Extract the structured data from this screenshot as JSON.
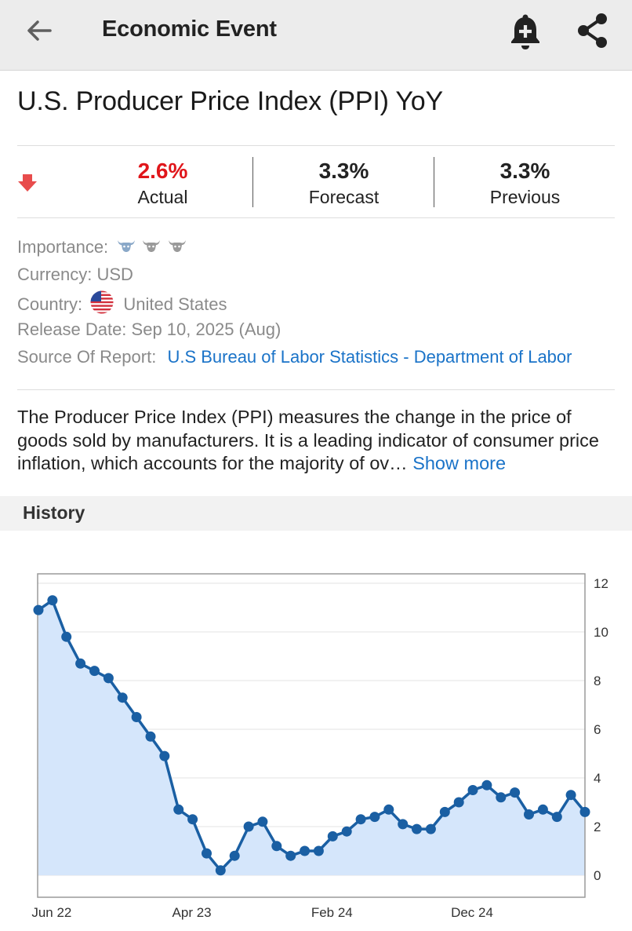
{
  "appbar": {
    "title": "Economic Event",
    "back_icon": "arrow-left-icon",
    "bell_icon": "bell-plus-icon",
    "share_icon": "share-icon"
  },
  "event": {
    "title": "U.S. Producer Price Index (PPI) YoY"
  },
  "stats": {
    "trend_icon": "arrow-down-icon",
    "actual": {
      "value": "2.6%",
      "label": "Actual",
      "color": "#e0161b"
    },
    "forecast": {
      "value": "3.3%",
      "label": "Forecast"
    },
    "previous": {
      "value": "3.3%",
      "label": "Previous"
    }
  },
  "meta": {
    "importance_label": "Importance:",
    "importance_level": 1,
    "importance_max": 3,
    "currency_label": "Currency:",
    "currency_value": "USD",
    "country_label": "Country:",
    "country_value": "United States",
    "release_label": "Release Date:",
    "release_value": "Sep 10, 2025 (Aug)",
    "source_label": "Source Of Report:",
    "source_value": "U.S Bureau of Labor Statistics - Department of Labor"
  },
  "description": {
    "text": "The Producer Price Index (PPI) measures the change in the price of goods sold by manufacturers. It is a leading indicator of consumer price inflation, which accounts for the majority of ov…",
    "show_more": "Show more"
  },
  "history": {
    "heading": "History"
  },
  "colors": {
    "line": "#1a5fa3",
    "fill": "#d5e6fb",
    "link": "#1a73c8",
    "bull_active": "#8aa8c8",
    "bull_inactive": "#9a9a9a"
  },
  "chart_data": {
    "type": "area",
    "ylim": [
      0,
      12
    ],
    "yticks": [
      "0",
      "2",
      "4",
      "6",
      "8",
      "10",
      "12"
    ],
    "xticks": [
      {
        "label": "Jun 22",
        "index": 1
      },
      {
        "label": "Apr 23",
        "index": 11
      },
      {
        "label": "Feb 24",
        "index": 21
      },
      {
        "label": "Dec 24",
        "index": 31
      }
    ],
    "grid": true,
    "values": [
      10.9,
      11.3,
      9.8,
      8.7,
      8.4,
      8.1,
      7.3,
      6.5,
      5.7,
      4.9,
      2.7,
      2.3,
      0.9,
      0.2,
      0.8,
      2.0,
      2.2,
      1.2,
      0.8,
      1.0,
      1.0,
      1.6,
      1.8,
      2.3,
      2.4,
      2.7,
      2.1,
      1.9,
      1.9,
      2.6,
      3.0,
      3.5,
      3.7,
      3.2,
      3.4,
      2.5,
      2.7,
      2.4,
      3.3,
      2.6
    ]
  }
}
